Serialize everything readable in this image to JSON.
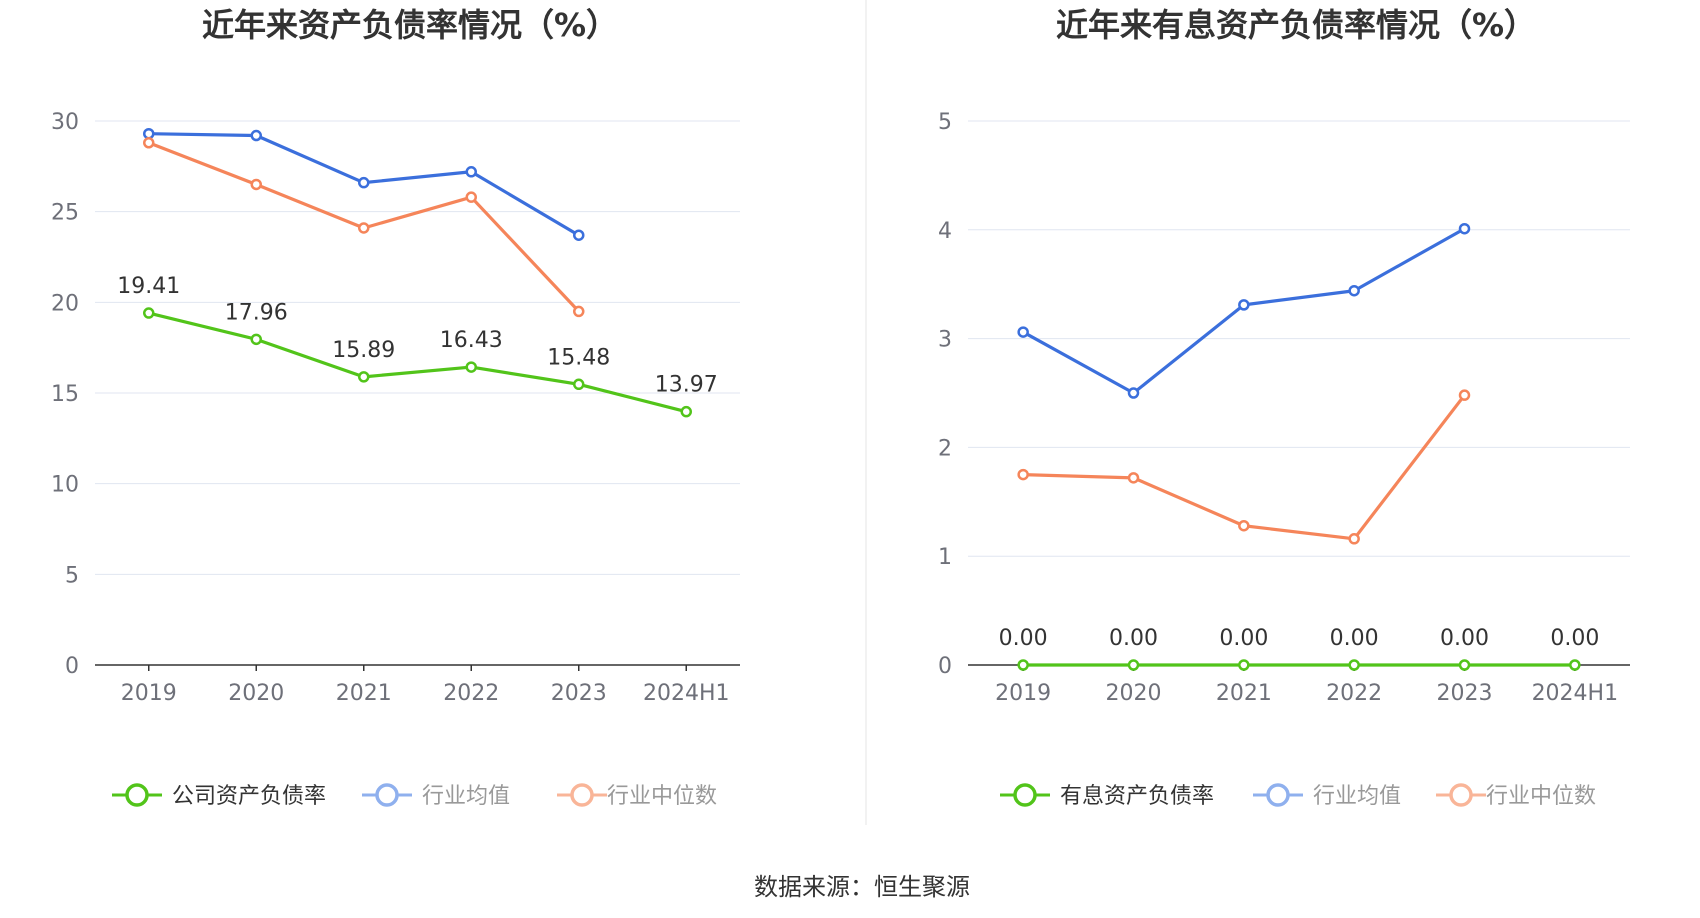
{
  "chart_data": [
    {
      "type": "line",
      "title": "近年来资产负债率情况（%）",
      "categories": [
        "2019",
        "2020",
        "2021",
        "2022",
        "2023",
        "2024H1"
      ],
      "ylim": [
        0,
        30
      ],
      "yticks": [
        "0",
        "5",
        "10",
        "15",
        "20",
        "25",
        "30"
      ],
      "grid": true,
      "legend_position": "bottom",
      "series": [
        {
          "name": "公司资产负债率",
          "color": "#52c41a",
          "values": [
            19.41,
            17.96,
            15.89,
            16.43,
            15.48,
            13.97
          ],
          "labels": [
            "19.41",
            "17.96",
            "15.89",
            "16.43",
            "15.48",
            "13.97"
          ]
        },
        {
          "name": "行业均值",
          "color": "#3b6fdc",
          "values": [
            29.3,
            29.2,
            26.6,
            27.2,
            23.7,
            null
          ]
        },
        {
          "name": "行业中位数",
          "color": "#f5855a",
          "values": [
            28.8,
            26.5,
            24.1,
            25.8,
            19.5,
            null
          ]
        }
      ]
    },
    {
      "type": "line",
      "title": "近年来有息资产负债率情况（%）",
      "categories": [
        "2019",
        "2020",
        "2021",
        "2022",
        "2023",
        "2024H1"
      ],
      "ylim": [
        0,
        5
      ],
      "yticks": [
        "0",
        "1",
        "2",
        "3",
        "4",
        "5"
      ],
      "grid": true,
      "legend_position": "bottom",
      "series": [
        {
          "name": "有息资产负债率",
          "color": "#52c41a",
          "values": [
            0,
            0,
            0,
            0,
            0,
            0
          ],
          "labels": [
            "0.00",
            "0.00",
            "0.00",
            "0.00",
            "0.00",
            "0.00"
          ]
        },
        {
          "name": "行业均值",
          "color": "#3b6fdc",
          "values": [
            3.06,
            2.5,
            3.31,
            3.44,
            4.01,
            null
          ]
        },
        {
          "name": "行业中位数",
          "color": "#f5855a",
          "values": [
            1.75,
            1.72,
            1.28,
            1.16,
            2.48,
            null
          ]
        }
      ]
    }
  ],
  "source": "数据来源：恒生聚源"
}
